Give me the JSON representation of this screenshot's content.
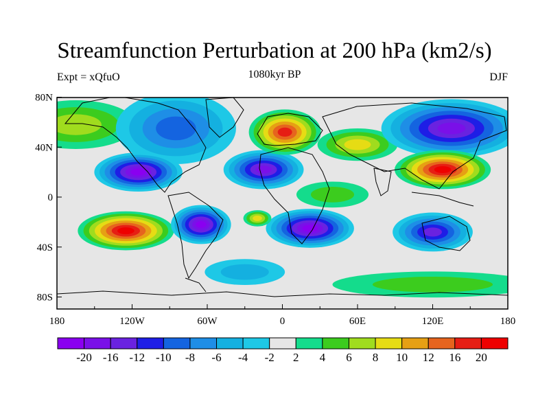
{
  "title": "Streamfunction Perturbation at 200 hPa (km2/s)",
  "subtitle_left": "Expt = xQfuO",
  "subtitle_center": "1080kyr BP",
  "subtitle_right": "DJF",
  "lat_labels": [
    "80N",
    "40N",
    "0",
    "40S",
    "80S"
  ],
  "lon_labels": [
    "180",
    "120W",
    "60W",
    "0",
    "60E",
    "120E",
    "180"
  ],
  "colorbar": {
    "labels": [
      "-20",
      "-16",
      "-12",
      "-10",
      "-8",
      "-6",
      "-4",
      "-2",
      "2",
      "4",
      "6",
      "8",
      "10",
      "12",
      "16",
      "20"
    ],
    "colors": [
      "#8a00f0",
      "#7a10e8",
      "#6a22e0",
      "#1e1ee6",
      "#1464e0",
      "#1e8ee6",
      "#14b0e0",
      "#1ec8e6",
      "#e6e6e6",
      "#14dc8c",
      "#3ccc1e",
      "#a0dc1e",
      "#e6dc14",
      "#e6a014",
      "#e6641e",
      "#e61e14",
      "#ee0000"
    ]
  },
  "features": [
    {
      "name": "pos-north-pacific",
      "lon": -165,
      "lat": 58,
      "rx": 30,
      "ry": 15,
      "level": 6
    },
    {
      "name": "neg-north-america",
      "lon": -85,
      "lat": 55,
      "rx": 30,
      "ry": 22,
      "level": -8
    },
    {
      "name": "neg-central-pacific-subtrop",
      "lon": -115,
      "lat": 20,
      "rx": 22,
      "ry": 12,
      "level": -20
    },
    {
      "name": "neg-tropical-atlantic",
      "lon": -15,
      "lat": 22,
      "rx": 20,
      "ry": 12,
      "level": -16
    },
    {
      "name": "pos-europe",
      "lon": 2,
      "lat": 52,
      "rx": 18,
      "ry": 14,
      "level": 16
    },
    {
      "name": "pos-eurasia",
      "lon": 60,
      "lat": 42,
      "rx": 20,
      "ry": 10,
      "level": 8
    },
    {
      "name": "neg-siberia-npac",
      "lon": 135,
      "lat": 55,
      "rx": 35,
      "ry": 18,
      "level": -16
    },
    {
      "name": "pos-west-pacific",
      "lon": 128,
      "lat": 22,
      "rx": 24,
      "ry": 12,
      "level": 20
    },
    {
      "name": "pos-south-pacific",
      "lon": -125,
      "lat": -27,
      "rx": 24,
      "ry": 12,
      "level": 20
    },
    {
      "name": "neg-south-america",
      "lon": -65,
      "lat": -22,
      "rx": 15,
      "ry": 12,
      "level": -20
    },
    {
      "name": "neg-south-atlantic-africa",
      "lon": 22,
      "lat": -25,
      "rx": 22,
      "ry": 12,
      "level": -20
    },
    {
      "name": "neg-australia",
      "lon": 120,
      "lat": -28,
      "rx": 20,
      "ry": 12,
      "level": -12
    },
    {
      "name": "neg-southern-ocean",
      "lon": -30,
      "lat": -60,
      "rx": 20,
      "ry": 8,
      "level": -4
    },
    {
      "name": "pos-antarctic-band",
      "lon": 120,
      "lat": -70,
      "rx": 50,
      "ry": 8,
      "level": 4
    },
    {
      "name": "pos-indian-ocean",
      "lon": 40,
      "lat": 2,
      "rx": 18,
      "ry": 8,
      "level": 4
    },
    {
      "name": "pos-tropical-atlantic-small",
      "lon": -20,
      "lat": -17,
      "rx": 7,
      "ry": 5,
      "level": 8
    }
  ]
}
